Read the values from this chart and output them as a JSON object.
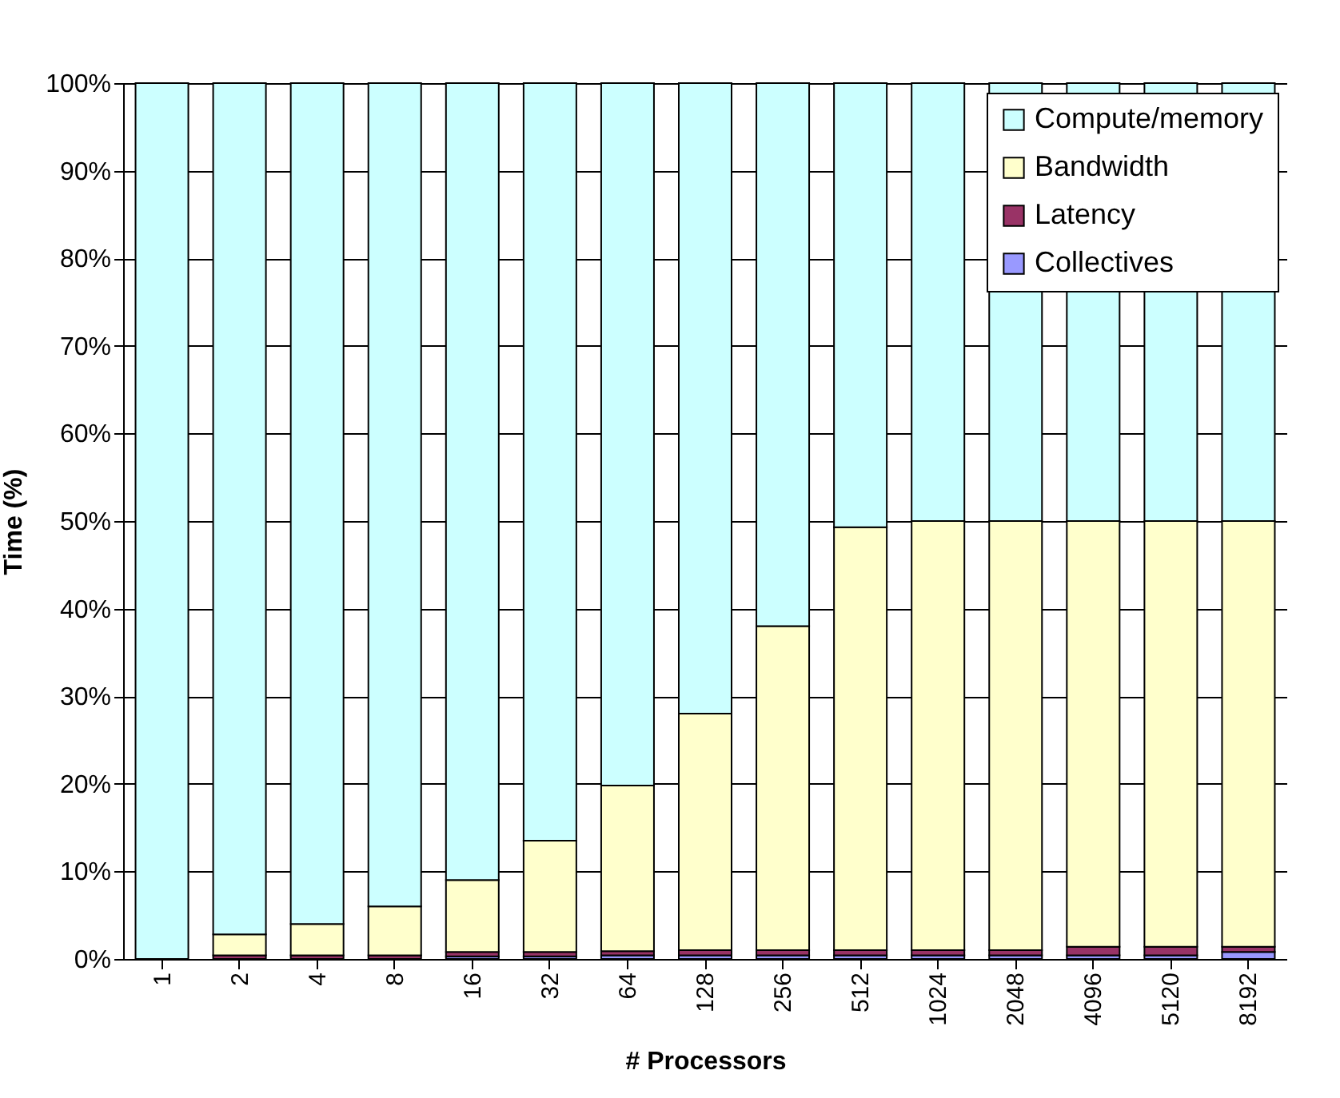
{
  "chart_data": {
    "type": "bar",
    "stacked": true,
    "xlabel": "# Processors",
    "ylabel": "Time (%)",
    "categories": [
      "1",
      "2",
      "4",
      "8",
      "16",
      "32",
      "64",
      "128",
      "256",
      "512",
      "1024",
      "2048",
      "4096",
      "5120",
      "8192"
    ],
    "series": [
      {
        "name": "Collectives",
        "color": "#9999ff",
        "values": [
          0,
          0,
          null,
          null,
          0.3,
          0.3,
          0.4,
          0.4,
          0.4,
          0.4,
          0.4,
          0.4,
          0.4,
          0.4,
          0.8
        ]
      },
      {
        "name": "Latency",
        "color": "#993366",
        "values": [
          0,
          0.4,
          0.4,
          0.4,
          0.5,
          0.5,
          0.5,
          0.6,
          0.6,
          0.6,
          0.6,
          0.6,
          1.0,
          1.0,
          0.6
        ]
      },
      {
        "name": "Bandwidth",
        "color": "#ffffcc",
        "values": [
          0,
          2.4,
          3.6,
          5.6,
          8.2,
          12.7,
          18.9,
          27,
          37,
          48.3,
          49,
          49,
          48.6,
          48.6,
          48.6
        ]
      },
      {
        "name": "Compute/memory",
        "color": "#ccffff",
        "values": [
          100,
          97.2,
          96,
          94,
          91,
          86.5,
          80.2,
          72,
          62,
          50.7,
          50,
          50,
          50,
          50,
          50
        ]
      }
    ],
    "ylim": [
      0,
      100
    ],
    "yticks": [
      {
        "value": 0,
        "label": "0%"
      },
      {
        "value": 10,
        "label": "10%"
      },
      {
        "value": 20,
        "label": "20%"
      },
      {
        "value": 30,
        "label": "30%"
      },
      {
        "value": 40,
        "label": "40%"
      },
      {
        "value": 50,
        "label": "50%"
      },
      {
        "value": 60,
        "label": "60%"
      },
      {
        "value": 70,
        "label": "70%"
      },
      {
        "value": 80,
        "label": "80%"
      },
      {
        "value": 90,
        "label": "90%"
      },
      {
        "value": 100,
        "label": "100%"
      }
    ],
    "grid": "y",
    "legend": "top right"
  }
}
